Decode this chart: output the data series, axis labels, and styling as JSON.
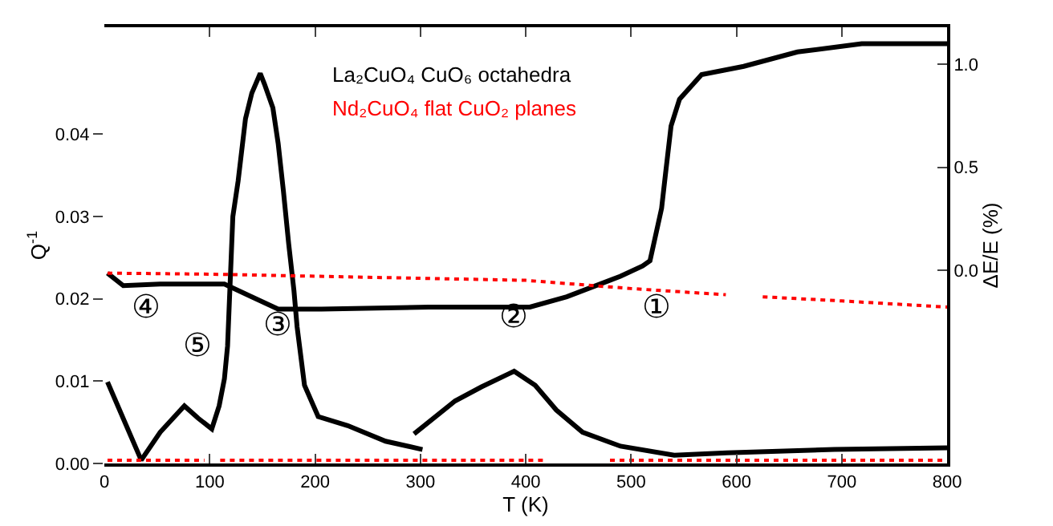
{
  "chart_data": {
    "type": "line",
    "xlabel": "T (K)",
    "ylabel": "Q$^{-1}$",
    "y2label": "ΔE/E (%)",
    "xlim": [
      0,
      800
    ],
    "xticks": [
      0,
      100,
      200,
      300,
      400,
      500,
      600,
      700,
      800
    ],
    "ylim": [
      0,
      0.053
    ],
    "yticks": [
      {
        "value": 0,
        "label": "0.00"
      },
      {
        "value": 0.01,
        "label": "0.01"
      },
      {
        "value": 0.02,
        "label": "0.02"
      },
      {
        "value": 0.03,
        "label": "0.03"
      },
      {
        "value": 0.04,
        "label": "0.04"
      }
    ],
    "y2lim": [
      -0.94,
      1.18
    ],
    "y2ticks": [
      {
        "value": 0,
        "label": "0.0"
      },
      {
        "value": 0.5,
        "label": "0.5"
      },
      {
        "value": 1.0,
        "label": "1.0"
      }
    ],
    "legend": false,
    "marker": "none",
    "series": [
      {
        "name": "La₂CuO₄ CuO₆ octahedra",
        "color": "#000000",
        "axis": "y2",
        "line_style": "solid",
        "x": [
          3,
          18,
          53,
          114,
          140,
          165,
          206,
          308,
          404,
          439,
          490,
          511,
          518,
          529,
          533,
          538,
          546,
          567,
          607,
          658,
          719,
          800
        ],
        "values": [
          -0.015,
          -0.076,
          -0.068,
          -0.068,
          -0.13,
          -0.19,
          -0.19,
          -0.18,
          -0.18,
          -0.13,
          -0.03,
          0.02,
          0.045,
          0.3,
          0.48,
          0.7,
          0.83,
          0.95,
          0.99,
          1.06,
          1.1,
          1.1
        ]
      },
      {
        "color": "#000000",
        "axis": "y",
        "line_style": "solid",
        "x": [
          3,
          35,
          53,
          76,
          89,
          102,
          109,
          114,
          117,
          122,
          127,
          134,
          140,
          148,
          152,
          160,
          165,
          170,
          175,
          180,
          183,
          190,
          203,
          231,
          267,
          302,
          298,
          294,
          333,
          358,
          384,
          389,
          409,
          429,
          454,
          490,
          541,
          591,
          693,
          800
        ],
        "values": [
          0.0099,
          0.0004,
          0.0038,
          0.007,
          0.0055,
          0.0042,
          0.007,
          0.0103,
          0.0143,
          0.03,
          0.0343,
          0.0419,
          0.045,
          0.0474,
          0.0461,
          0.0432,
          0.0389,
          0.0331,
          0.0267,
          0.021,
          0.0166,
          0.0095,
          0.0057,
          0.0046,
          0.0027,
          0.0017,
          null,
          0.0036,
          0.0076,
          0.0093,
          0.0109,
          0.0112,
          0.0095,
          0.0065,
          0.0038,
          0.0021,
          0.001,
          0.0013,
          0.0017,
          0.0019
        ]
      },
      {
        "name": "Nd₂CuO₄ flat CuO₂ planes",
        "color": "#ff0000",
        "axis": "y2",
        "line_style": "dotted",
        "x": [
          3,
          100,
          200,
          300,
          400,
          500,
          590,
          600,
          625,
          700,
          800
        ],
        "values": [
          -0.015,
          -0.02,
          -0.03,
          -0.04,
          -0.05,
          -0.09,
          -0.12,
          null,
          -0.13,
          -0.15,
          -0.18
        ]
      },
      {
        "color": "#ff0000",
        "axis": "y",
        "line_style": "dotted",
        "x": [
          3,
          50,
          95,
          100,
          110,
          150,
          200,
          250,
          300,
          350,
          400,
          420,
          430,
          480,
          540,
          560,
          600,
          700,
          710,
          800
        ],
        "values": [
          0.0004,
          0.0004,
          0.0004,
          null,
          0.0004,
          0.0004,
          0.0004,
          0.0004,
          0.0004,
          0.0004,
          0.0004,
          0.0004,
          null,
          0.0004,
          0.0004,
          0.0004,
          0.0004,
          0.0004,
          0.0004,
          0.0004
        ]
      }
    ],
    "annotations": [
      "①",
      "②",
      "③",
      "④",
      "⑤"
    ]
  }
}
